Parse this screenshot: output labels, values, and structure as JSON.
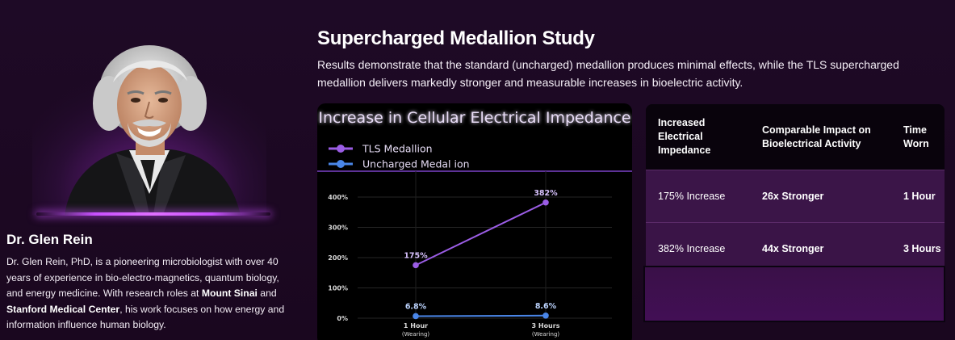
{
  "profile": {
    "name": "Dr. Glen Rein",
    "bio": {
      "part1": "Dr. Glen Rein, PhD, is a pioneering microbiologist with over 40 years of experience in bio-electro-magnetics, quantum biology, and energy medicine. With research roles at ",
      "org1": "Mount Sinai",
      "part2": " and ",
      "org2": "Stanford Medical Center",
      "part3": ", his work focuses on how energy and information influence human biology."
    }
  },
  "study": {
    "title": "Supercharged Medallion Study",
    "description": "Results demonstrate that the standard (uncharged) medallion produces minimal effects, while the TLS supercharged medallion delivers markedly stronger and measurable increases in bioelectric activity."
  },
  "chart_data": {
    "type": "line",
    "title": "Increase in Cellular Electrical Impedance",
    "categories": [
      "1 Hour (Wearing)",
      "3 Hours (Wearing)"
    ],
    "category_lines": [
      [
        "1 Hour",
        "(Wearing)"
      ],
      [
        "3 Hours",
        "(Wearing)"
      ]
    ],
    "series": [
      {
        "name": "TLS Medallion",
        "values": [
          175,
          382
        ],
        "labels": [
          "175%",
          "382%"
        ],
        "color": "#9b5de5"
      },
      {
        "name": "Uncharged Medal ion",
        "values": [
          6.8,
          8.6
        ],
        "labels": [
          "6.8%",
          "8.6%"
        ],
        "color": "#4a86e8"
      }
    ],
    "ylim": [
      0,
      400
    ],
    "yticks": [
      0,
      100,
      200,
      300,
      400
    ],
    "ytick_labels": [
      "0%",
      "100%",
      "200%",
      "300%",
      "400%"
    ],
    "grid": true,
    "legend_position": "top-left"
  },
  "table": {
    "headers": [
      "Increased Electrical Impedance",
      "Comparable Impact on Bioelectrical Activity",
      "Time Worn"
    ],
    "rows": [
      [
        "175% Increase",
        "26x Stronger",
        "1 Hour"
      ],
      [
        "382% Increase",
        "44x Stronger",
        "3 Hours"
      ]
    ]
  },
  "colors": {
    "background": "#1e0a26",
    "accent_purple": "#9b5de5",
    "accent_blue": "#4a86e8",
    "table_row": "#3b1548"
  }
}
